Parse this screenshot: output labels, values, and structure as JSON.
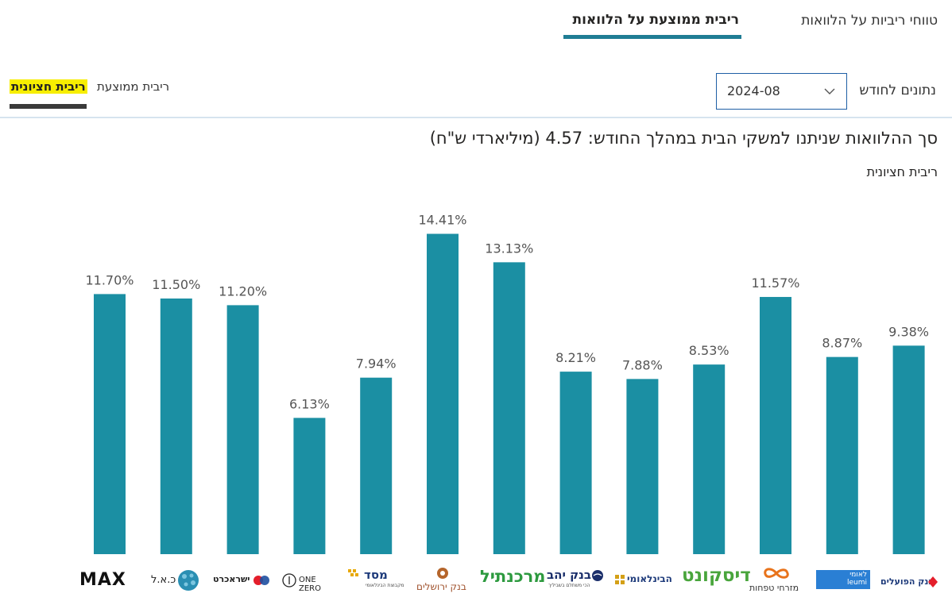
{
  "tabs": {
    "ranges_label": "טווחי ריביות על הלוואות",
    "average_label": "ריבית ממוצעת על הלוואות"
  },
  "subtabs": {
    "median_label": "ריבית חציונית",
    "average_label": "ריבית ממוצעת"
  },
  "month_filter": {
    "label": "נתונים לחודש",
    "value": "2024-08"
  },
  "chart_data": {
    "type": "bar",
    "title": "סך ההלוואות שניתנו למשקי הבית במהלך החודש: 4.57 (מיליארדי ש\"ח)",
    "subtitle": "ריבית חציונית",
    "categories": [
      "MAX",
      "כ.א.ל",
      "ישראכרט",
      "ONE ZERO",
      "מסד",
      "בנק ירושלים",
      "מרכנתיל",
      "בנק יהב",
      "הבינלאומי",
      "דיסקונט",
      "מזרחי טפחות",
      "לאומי",
      "בנק הפועלים"
    ],
    "values": [
      11.7,
      11.5,
      11.2,
      6.13,
      7.94,
      14.41,
      13.13,
      8.21,
      7.88,
      8.53,
      11.57,
      8.87,
      9.38
    ],
    "value_labels": [
      "11.70%",
      "11.50%",
      "11.20%",
      "6.13%",
      "7.94%",
      "14.41%",
      "13.13%",
      "8.21%",
      "7.88%",
      "8.53%",
      "11.57%",
      "8.87%",
      "9.38%"
    ],
    "ylim": [
      0,
      16
    ],
    "grid": false,
    "bar_color": "#1b8fa3"
  },
  "logos": {
    "max": "MAX",
    "cal": "כ.א.ל",
    "isracard": "ישראכרט",
    "onezero": "ONE ZERO",
    "massad": "מסד",
    "massad_sub": "מקבוצת הבינלאומי",
    "jerusalem": "בנק ירושלים",
    "mercantile": "מרכנתיל",
    "yahav": "בנק יהב",
    "yahav_sub": "הכי משתלם בשביליך",
    "fibi": "הבינלאומי",
    "discount": "דיסקונט",
    "mizrahi": "מזרחי טפחות",
    "leumi": "לאומי",
    "leumi_en": "leumi",
    "poalim": "בנק הפועלים"
  },
  "colors": {
    "accent": "#1f7d94",
    "bar": "#1b8fa3",
    "highlight": "#f7ee00"
  }
}
